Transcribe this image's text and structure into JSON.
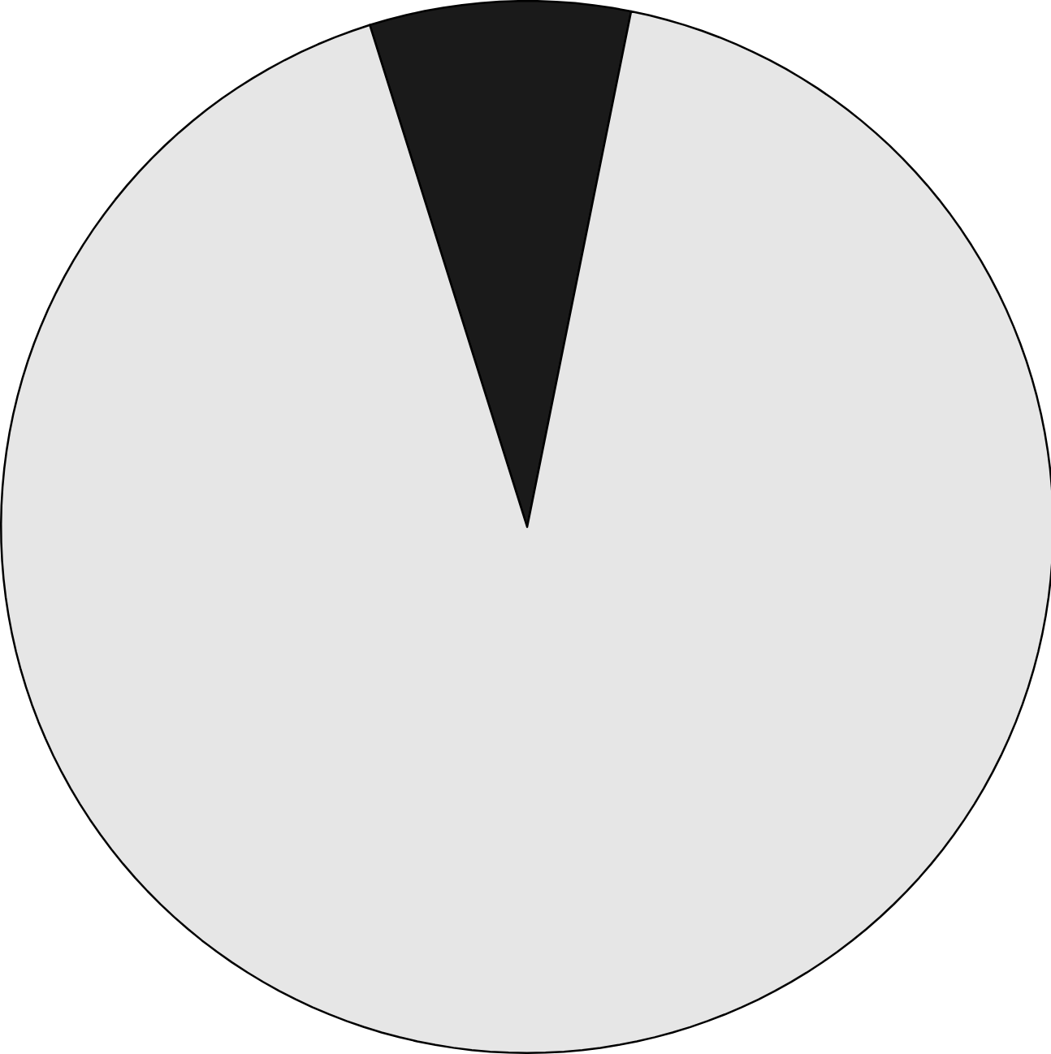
{
  "chart_data": {
    "type": "pie",
    "categories": [
      null,
      null
    ],
    "values": [
      8,
      92
    ],
    "colors": [
      "#1a1a1a",
      "#e6e6e6"
    ],
    "legend": false
  }
}
